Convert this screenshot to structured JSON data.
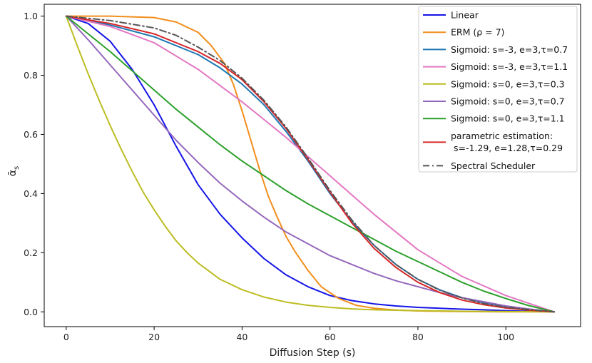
{
  "chart_data": {
    "type": "line",
    "xlabel": "Diffusion Step (s)",
    "ylabel": "ᾱ",
    "ylabel_sub": "s",
    "xlim": [
      -5,
      117
    ],
    "ylim": [
      -0.05,
      1.04
    ],
    "xticks": [
      0,
      20,
      40,
      60,
      80,
      100
    ],
    "yticks": [
      0.0,
      0.2,
      0.4,
      0.6,
      0.8,
      1.0
    ],
    "xtick_labels": [
      "0",
      "20",
      "40",
      "60",
      "80",
      "100"
    ],
    "ytick_labels": [
      "0.0",
      "0.2",
      "0.4",
      "0.6",
      "0.8",
      "1.0"
    ],
    "grid": false,
    "legend_position": "top-right",
    "x_max": 111,
    "series": [
      {
        "name": "Linear",
        "color": "#1515e8",
        "dash": "solid",
        "x": [
          0,
          5,
          10,
          15,
          20,
          25,
          30,
          35,
          40,
          45,
          50,
          55,
          60,
          65,
          70,
          75,
          80,
          85,
          90,
          95,
          100,
          105,
          111
        ],
        "y": [
          1.0,
          0.975,
          0.915,
          0.82,
          0.7,
          0.56,
          0.43,
          0.33,
          0.25,
          0.18,
          0.125,
          0.085,
          0.055,
          0.038,
          0.027,
          0.02,
          0.015,
          0.012,
          0.009,
          0.007,
          0.004,
          0.002,
          0.0
        ]
      },
      {
        "name": "ERM (ρ = 7)",
        "color": "#f28e1c",
        "dash": "solid",
        "x": [
          0,
          10,
          20,
          25,
          30,
          33,
          36,
          38,
          40,
          42,
          44,
          46,
          48,
          50,
          52,
          55,
          58,
          62,
          66,
          70,
          75,
          80,
          90,
          100,
          111
        ],
        "y": [
          1.0,
          1.0,
          0.995,
          0.98,
          0.945,
          0.9,
          0.84,
          0.77,
          0.68,
          0.58,
          0.48,
          0.39,
          0.32,
          0.255,
          0.205,
          0.14,
          0.085,
          0.045,
          0.022,
          0.012,
          0.006,
          0.003,
          0.001,
          0.0,
          0.0
        ]
      },
      {
        "name": "Sigmoid: s=-3, e=3,τ=0.7",
        "color": "#1f77b4",
        "dash": "solid",
        "x": [
          0,
          10,
          20,
          30,
          35,
          40,
          45,
          50,
          55,
          60,
          65,
          70,
          75,
          80,
          85,
          90,
          95,
          100,
          105,
          111
        ],
        "y": [
          1.0,
          0.97,
          0.93,
          0.87,
          0.825,
          0.77,
          0.7,
          0.61,
          0.51,
          0.4,
          0.305,
          0.225,
          0.16,
          0.11,
          0.074,
          0.048,
          0.03,
          0.018,
          0.009,
          0.0
        ]
      },
      {
        "name": "Sigmoid: s=-3, e=3,τ=1.1",
        "color": "#e377c2",
        "dash": "solid",
        "x": [
          0,
          10,
          20,
          30,
          40,
          50,
          60,
          70,
          80,
          90,
          100,
          105,
          111
        ],
        "y": [
          1.0,
          0.965,
          0.91,
          0.82,
          0.71,
          0.59,
          0.46,
          0.33,
          0.21,
          0.12,
          0.055,
          0.03,
          0.0
        ]
      },
      {
        "name": "Sigmoid: s=0, e=3,τ=0.3",
        "color": "#bcbd22",
        "dash": "solid",
        "x": [
          0,
          2.5,
          5,
          7.5,
          10,
          12.5,
          15,
          17.5,
          20,
          22.5,
          25,
          27.5,
          30,
          35,
          40,
          45,
          50,
          55,
          60,
          65,
          70,
          80,
          90,
          100,
          111
        ],
        "y": [
          1.0,
          0.9,
          0.805,
          0.715,
          0.63,
          0.55,
          0.475,
          0.405,
          0.345,
          0.29,
          0.24,
          0.2,
          0.165,
          0.11,
          0.075,
          0.05,
          0.033,
          0.022,
          0.015,
          0.01,
          0.007,
          0.004,
          0.002,
          0.001,
          0.0
        ]
      },
      {
        "name": "Sigmoid: s=0, e=3,τ=0.7",
        "color": "#9467bd",
        "dash": "solid",
        "x": [
          0,
          5,
          10,
          15,
          20,
          25,
          30,
          35,
          40,
          45,
          50,
          55,
          60,
          65,
          70,
          75,
          80,
          85,
          90,
          95,
          100,
          105,
          111
        ],
        "y": [
          1.0,
          0.92,
          0.835,
          0.75,
          0.665,
          0.58,
          0.505,
          0.435,
          0.375,
          0.32,
          0.27,
          0.23,
          0.19,
          0.16,
          0.13,
          0.105,
          0.085,
          0.065,
          0.048,
          0.034,
          0.02,
          0.01,
          0.0
        ]
      },
      {
        "name": "Sigmoid: s=0, e=3,τ=1.1",
        "color": "#2ca02c",
        "dash": "solid",
        "x": [
          0,
          5,
          10,
          15,
          20,
          25,
          30,
          35,
          40,
          45,
          50,
          55,
          60,
          65,
          70,
          75,
          80,
          85,
          90,
          95,
          100,
          105,
          111
        ],
        "y": [
          1.0,
          0.94,
          0.88,
          0.815,
          0.75,
          0.685,
          0.625,
          0.565,
          0.51,
          0.46,
          0.41,
          0.365,
          0.325,
          0.285,
          0.245,
          0.205,
          0.17,
          0.135,
          0.1,
          0.07,
          0.045,
          0.022,
          0.0
        ]
      },
      {
        "name": "parametric estimation:",
        "name_line2": " s=-1.29, e=1.28,τ=0.29",
        "color": "#d62728",
        "dash": "solid",
        "x": [
          0,
          10,
          20,
          30,
          35,
          40,
          45,
          50,
          55,
          60,
          65,
          70,
          75,
          80,
          85,
          90,
          95,
          100,
          105,
          111
        ],
        "y": [
          1.0,
          0.975,
          0.94,
          0.88,
          0.84,
          0.785,
          0.71,
          0.62,
          0.515,
          0.405,
          0.3,
          0.215,
          0.15,
          0.1,
          0.065,
          0.04,
          0.024,
          0.013,
          0.006,
          0.0
        ]
      },
      {
        "name": "Spectral Scheduler",
        "color": "#555555",
        "dash": "dashdot",
        "x": [
          0,
          10,
          20,
          25,
          30,
          35,
          40,
          45,
          50,
          55,
          60,
          65,
          70,
          75,
          80,
          85,
          90,
          95,
          100,
          105,
          111
        ],
        "y": [
          1.0,
          0.985,
          0.96,
          0.935,
          0.895,
          0.85,
          0.79,
          0.715,
          0.625,
          0.52,
          0.41,
          0.31,
          0.225,
          0.16,
          0.11,
          0.073,
          0.047,
          0.028,
          0.016,
          0.008,
          0.0
        ]
      }
    ]
  }
}
